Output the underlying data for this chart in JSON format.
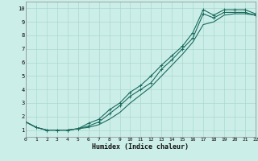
{
  "xlabel": "Humidex (Indice chaleur)",
  "xlim": [
    0,
    22
  ],
  "ylim": [
    0.5,
    10.5
  ],
  "xticks": [
    0,
    1,
    2,
    3,
    4,
    5,
    6,
    7,
    8,
    9,
    10,
    11,
    12,
    13,
    14,
    15,
    16,
    17,
    18,
    19,
    20,
    21,
    22
  ],
  "yticks": [
    1,
    2,
    3,
    4,
    5,
    6,
    7,
    8,
    9,
    10
  ],
  "bg_color": "#cceee8",
  "grid_color": "#aad8d0",
  "line_color": "#1a6b5e",
  "line1_x": [
    0,
    1,
    2,
    3,
    4,
    5,
    6,
    7,
    8,
    9,
    10,
    11,
    12,
    13,
    14,
    15,
    16,
    17,
    18,
    19,
    20,
    21,
    22
  ],
  "line1_y": [
    1.6,
    1.2,
    1.0,
    1.0,
    1.0,
    1.1,
    1.5,
    1.8,
    2.5,
    3.0,
    3.8,
    4.3,
    5.0,
    5.8,
    6.5,
    7.2,
    8.2,
    9.9,
    9.5,
    9.9,
    9.9,
    9.9,
    9.6
  ],
  "line2_x": [
    0,
    1,
    2,
    3,
    4,
    5,
    6,
    7,
    8,
    9,
    10,
    11,
    12,
    13,
    14,
    15,
    16,
    17,
    18,
    19,
    20,
    21,
    22
  ],
  "line2_y": [
    1.6,
    1.2,
    1.0,
    1.0,
    1.0,
    1.1,
    1.3,
    1.6,
    2.2,
    2.8,
    3.5,
    4.0,
    4.5,
    5.5,
    6.2,
    7.0,
    7.8,
    9.6,
    9.3,
    9.7,
    9.7,
    9.7,
    9.5
  ],
  "line3_x": [
    0,
    1,
    2,
    3,
    4,
    5,
    6,
    7,
    8,
    9,
    10,
    11,
    12,
    13,
    14,
    15,
    16,
    17,
    18,
    19,
    20,
    21,
    22
  ],
  "line3_y": [
    1.6,
    1.2,
    1.0,
    1.0,
    1.0,
    1.1,
    1.2,
    1.4,
    1.8,
    2.3,
    3.0,
    3.6,
    4.2,
    5.0,
    5.8,
    6.6,
    7.5,
    8.8,
    9.0,
    9.5,
    9.6,
    9.6,
    9.5
  ]
}
